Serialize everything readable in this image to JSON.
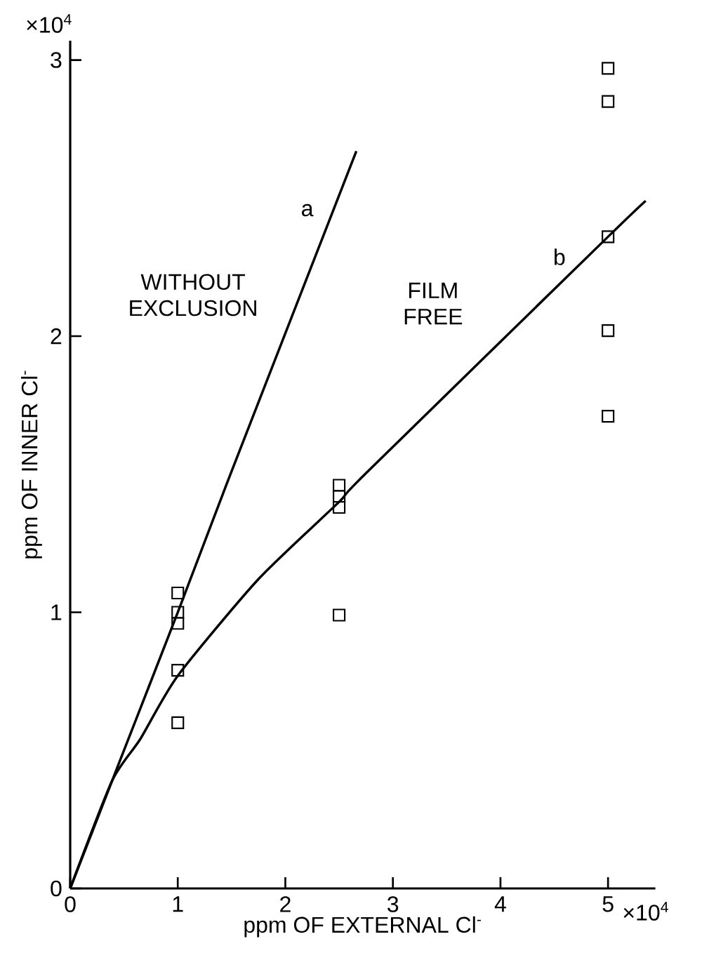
{
  "chart_data": {
    "type": "scatter",
    "xlabel": "ppm OF EXTERNAL Cl$^{-}$",
    "ylabel": "ppm OF INNER Cl$^{-}$",
    "xlim": [
      0,
      5.44
    ],
    "ylim": [
      0,
      3.07
    ],
    "xticks": [
      0,
      1,
      2,
      3,
      4,
      5
    ],
    "yticks": [
      0,
      1,
      2,
      3
    ],
    "grid": false,
    "series": [
      {
        "marker": "square",
        "color": "#000000",
        "x": [
          5.0,
          5.0,
          5.0,
          5.0,
          5.0,
          2.5,
          2.5,
          2.5,
          2.5,
          1.0,
          1.0,
          1.0,
          1.0,
          1.0
        ],
        "values": [
          2.97,
          2.85,
          2.36,
          2.02,
          1.71,
          1.46,
          1.42,
          1.38,
          0.99,
          1.07,
          1.0,
          0.96,
          0.79,
          0.6
        ]
      },
      {
        "type": "line",
        "marker": "none",
        "line_style": "solid",
        "color": "#000000",
        "x": [
          0,
          0.46,
          1.0,
          1.48,
          2.66
        ],
        "values": [
          0,
          0.46,
          1.0,
          1.49,
          2.67
        ]
      },
      {
        "type": "line",
        "marker": "none",
        "line_style": "solid",
        "color": "#000000",
        "x": [
          0,
          0.39,
          0.65,
          1.0,
          1.75,
          2.5,
          2.74,
          5.0,
          5.35
        ],
        "values": [
          0,
          0.39,
          0.54,
          0.77,
          1.12,
          1.4,
          1.5,
          2.36,
          2.49
        ]
      }
    ],
    "annotations": [
      "×10$^{4}$",
      "×10$^{4}$",
      "WITHOUT EXCLUSION",
      "FILM FREE",
      "a",
      "b"
    ]
  }
}
